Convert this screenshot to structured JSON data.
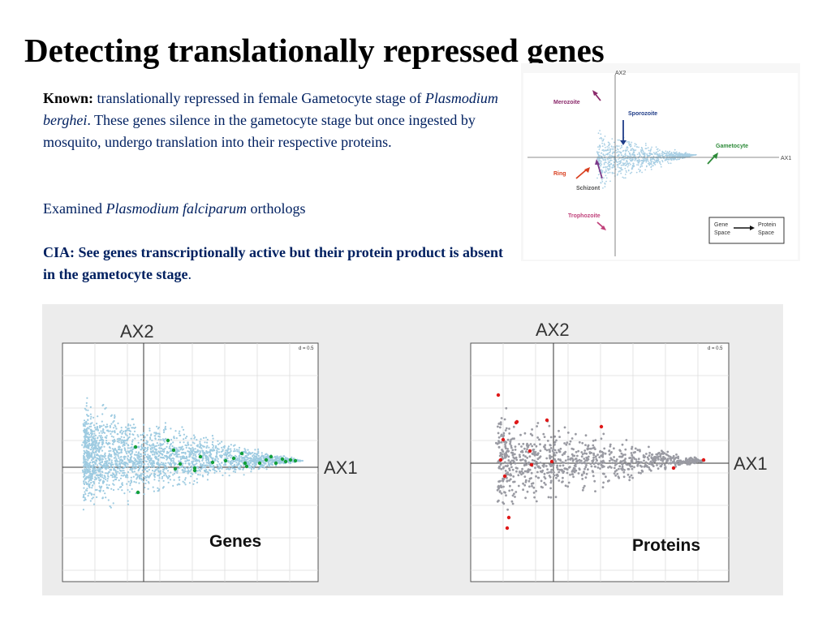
{
  "title": "Detecting translationally repressed  genes",
  "paragraph1": {
    "lead": "Known:",
    "text_a": " translationally repressed in female Gametocyte stage of ",
    "species": "Plasmodium berghei",
    "text_b": ".  These genes silence in the gametocyte stage but once ingested by mosquito, undergo translation into their respective proteins."
  },
  "paragraph2": {
    "text_a": "Examined ",
    "species": "Plasmodium falciparum",
    "text_b": " orthologs"
  },
  "paragraph3": {
    "text": "CIA:  See genes transcriptionally active but their protein product is absent in the gametocyte stage",
    "end": "."
  },
  "schematic": {
    "ax1": "AX1",
    "ax2": "AX2",
    "labels": {
      "merozoite": "Merozoite",
      "sporozoite": "Sporozoite",
      "gametocyte": "Gametocyte",
      "ring": "Ring",
      "schizont": "Schizont",
      "trophozoite": "Trophozoite"
    },
    "legend": {
      "from_line1": "Gene",
      "from_line2": "Space",
      "to_line1": "Protein",
      "to_line2": "Space"
    },
    "colors": {
      "merozoite": "#8b2a6b",
      "sporozoite": "#1f3c88",
      "gametocyte": "#2e8b3a",
      "ring": "#d94020",
      "schizont": "#7b3a8a",
      "trophozoite": "#c0407a",
      "cloud": "#a9cfe4"
    }
  },
  "panels": {
    "genes": {
      "ax1": "AX1",
      "ax2": "AX2",
      "scale": "d = 0.5",
      "label": "Genes",
      "point_color": "#9ecbe1",
      "highlight_color": "#13a03a"
    },
    "proteins": {
      "ax1": "AX1",
      "ax2": "AX2",
      "scale": "d = 0.5",
      "label": "Proteins",
      "point_color": "#9a9ba3",
      "highlight_color": "#e01818"
    }
  }
}
